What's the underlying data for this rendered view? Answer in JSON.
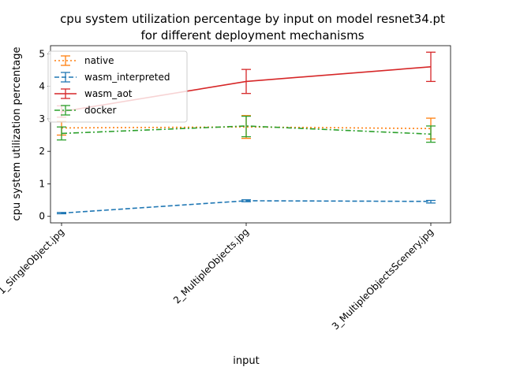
{
  "chart_data": {
    "type": "line",
    "title_lines": [
      "cpu system utilization percentage by input on model resnet34.pt",
      "for different deployment mechanisms"
    ],
    "xlabel": "input",
    "ylabel": "cpu system utilization percentage",
    "categories": [
      "1_SingleObject.jpg",
      "2_MultipleObjects.jpg",
      "3_MultipleObjectsScenery.jpg"
    ],
    "ylim": [
      -0.2,
      5.25
    ],
    "yticks": [
      0,
      1,
      2,
      3,
      4,
      5
    ],
    "grid": false,
    "legend_position": "top-left",
    "series": [
      {
        "name": "native",
        "color": "#ff7f0e",
        "dash": "2,3",
        "values": [
          2.72,
          2.75,
          2.7
        ],
        "err_low": [
          2.5,
          2.4,
          2.38
        ],
        "err_high": [
          2.92,
          3.1,
          3.02
        ]
      },
      {
        "name": "wasm_interpreted",
        "color": "#1f77b4",
        "dash": "6,3",
        "values": [
          0.1,
          0.48,
          0.46
        ],
        "err_low": [
          0.08,
          0.45,
          0.41
        ],
        "err_high": [
          0.12,
          0.51,
          0.49
        ]
      },
      {
        "name": "wasm_aot",
        "color": "#d62728",
        "dash": "",
        "values": [
          3.22,
          4.15,
          4.6
        ],
        "err_low": [
          3.05,
          3.78,
          4.15
        ],
        "err_high": [
          3.4,
          4.52,
          5.05
        ]
      },
      {
        "name": "docker",
        "color": "#2ca02c",
        "dash": "7,3,2,3",
        "values": [
          2.55,
          2.78,
          2.53
        ],
        "err_low": [
          2.35,
          2.45,
          2.28
        ],
        "err_high": [
          2.75,
          3.08,
          2.78
        ]
      }
    ]
  }
}
